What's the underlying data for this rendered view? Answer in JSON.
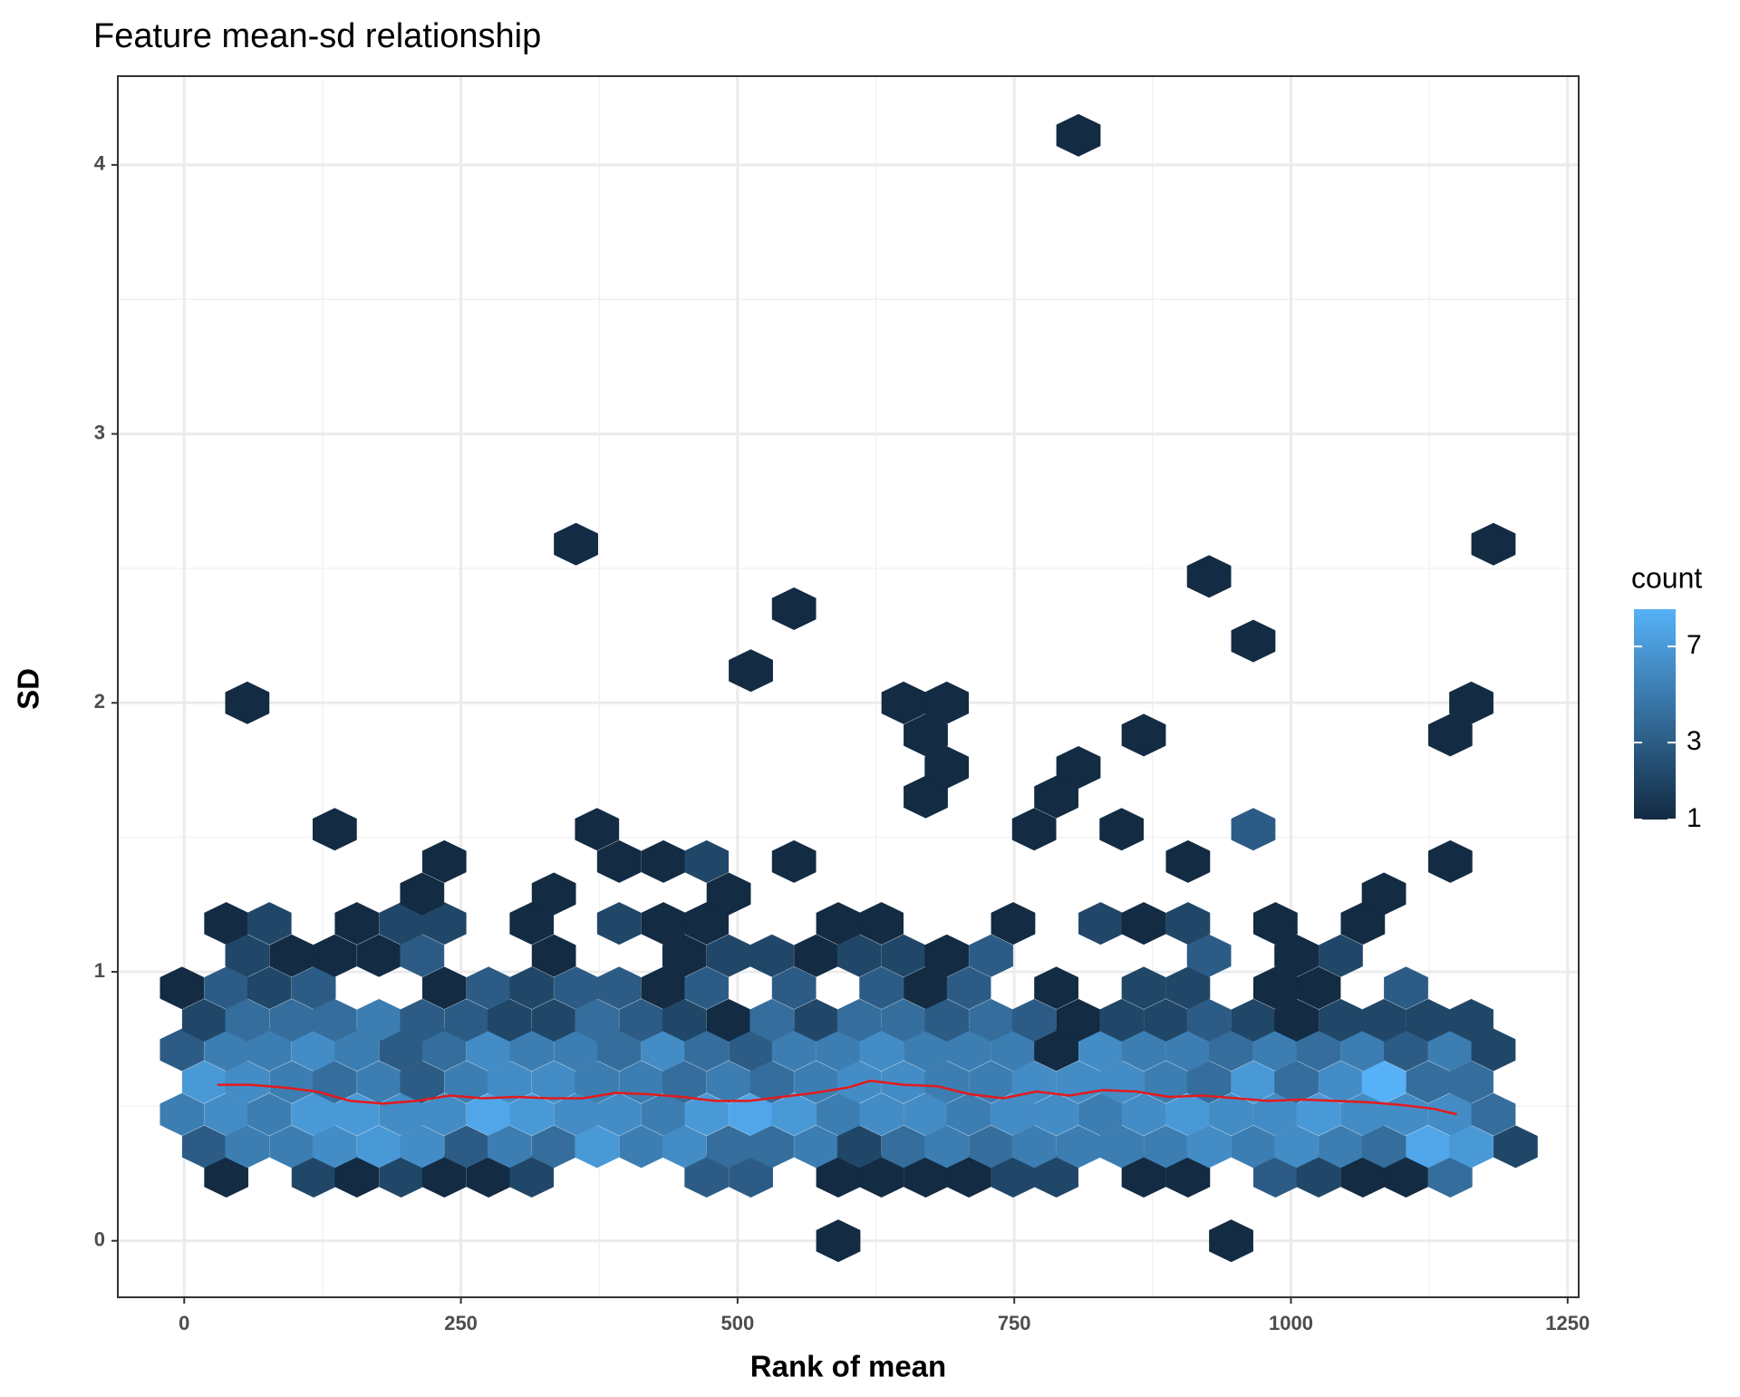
{
  "chart_data": {
    "type": "hexbin",
    "title": "Feature mean-sd relationship",
    "x_label": "Rank of mean",
    "y_label": "SD",
    "xlim": [
      -60,
      1260
    ],
    "ylim": [
      -0.21,
      4.33
    ],
    "xticks": [
      0,
      250,
      500,
      750,
      1000,
      1250
    ],
    "yticks": [
      0,
      1,
      2,
      3,
      4
    ],
    "grid": true,
    "fill": {
      "title": "count",
      "trans": "sqrt",
      "lim": [
        1,
        9
      ],
      "ticks": [
        1,
        3,
        7
      ],
      "low": "#132B43",
      "high": "#56B1F7"
    },
    "rows": [
      {
        "y": 0,
        "x": [
          591,
          946
        ],
        "count": [
          1,
          1
        ]
      },
      {
        "y": 0.24,
        "x": [
          38,
          117,
          156,
          196,
          235,
          275,
          314,
          472,
          512,
          591,
          630,
          670,
          709,
          749,
          788,
          867,
          907,
          986,
          1025,
          1065,
          1104,
          1144
        ],
        "count": [
          1,
          2,
          1,
          2,
          1,
          1,
          2,
          3,
          3,
          1,
          1,
          1,
          1,
          2,
          2,
          1,
          1,
          3,
          2,
          1,
          1,
          4
        ]
      },
      {
        "y": 0.35,
        "x": [
          18,
          57,
          97,
          136,
          176,
          215,
          255,
          294,
          334,
          373,
          413,
          452,
          492,
          531,
          571,
          610,
          650,
          689,
          729,
          768,
          808,
          847,
          887,
          926,
          966,
          1005,
          1045,
          1084,
          1124,
          1163,
          1203
        ],
        "count": [
          3,
          5,
          5,
          6,
          7,
          6,
          3,
          5,
          4,
          7,
          5,
          6,
          4,
          4,
          5,
          2,
          4,
          5,
          4,
          5,
          5,
          5,
          5,
          6,
          5,
          6,
          5,
          4,
          8,
          7,
          2
        ]
      },
      {
        "y": 0.47,
        "x": [
          -2,
          38,
          77,
          117,
          156,
          196,
          235,
          275,
          314,
          354,
          393,
          433,
          472,
          512,
          551,
          591,
          630,
          670,
          709,
          749,
          788,
          828,
          867,
          907,
          946,
          986,
          1025,
          1065,
          1104,
          1144,
          1183
        ],
        "count": [
          5,
          6,
          5,
          7,
          7,
          6,
          6,
          8,
          7,
          6,
          6,
          5,
          7,
          8,
          7,
          5,
          6,
          6,
          5,
          6,
          6,
          5,
          6,
          7,
          6,
          6,
          7,
          6,
          6,
          6,
          4
        ]
      },
      {
        "y": 0.59,
        "x": [
          18,
          57,
          97,
          136,
          176,
          215,
          255,
          294,
          334,
          373,
          413,
          452,
          492,
          531,
          571,
          610,
          650,
          689,
          729,
          768,
          808,
          847,
          887,
          926,
          966,
          1005,
          1045,
          1084,
          1124,
          1163
        ],
        "count": [
          7,
          6,
          5,
          4,
          5,
          3,
          5,
          6,
          6,
          5,
          5,
          4,
          5,
          4,
          5,
          6,
          6,
          5,
          5,
          6,
          6,
          6,
          5,
          4,
          7,
          4,
          6,
          9,
          4,
          4
        ]
      },
      {
        "y": 0.71,
        "x": [
          -2,
          38,
          77,
          117,
          156,
          196,
          235,
          275,
          314,
          354,
          393,
          433,
          472,
          512,
          551,
          591,
          630,
          670,
          709,
          749,
          788,
          828,
          867,
          907,
          946,
          986,
          1025,
          1065,
          1104,
          1144,
          1183
        ],
        "count": [
          3,
          5,
          5,
          6,
          5,
          3,
          4,
          6,
          5,
          5,
          4,
          6,
          4,
          3,
          5,
          5,
          6,
          5,
          5,
          5,
          1,
          6,
          5,
          5,
          4,
          5,
          4,
          5,
          3,
          5,
          2
        ]
      },
      {
        "y": 0.82,
        "x": [
          18,
          57,
          97,
          136,
          176,
          215,
          255,
          294,
          334,
          373,
          413,
          452,
          492,
          531,
          571,
          610,
          650,
          689,
          729,
          768,
          808,
          847,
          887,
          926,
          966,
          1005,
          1045,
          1084,
          1124,
          1163
        ],
        "count": [
          2,
          4,
          4,
          4,
          5,
          3,
          3,
          2,
          2,
          4,
          3,
          2,
          1,
          4,
          2,
          4,
          4,
          3,
          4,
          3,
          1,
          2,
          2,
          3,
          2,
          1,
          2,
          2,
          2,
          2
        ]
      },
      {
        "y": 0.94,
        "x": [
          -2,
          38,
          77,
          117,
          235,
          275,
          314,
          354,
          393,
          433,
          472,
          551,
          630,
          670,
          709,
          788,
          867,
          907,
          986,
          1025,
          1104
        ],
        "count": [
          1,
          3,
          2,
          3,
          1,
          3,
          2,
          3,
          3,
          1,
          3,
          3,
          3,
          1,
          3,
          1,
          2,
          2,
          1,
          1,
          3
        ]
      },
      {
        "y": 1.06,
        "x": [
          57,
          97,
          136,
          176,
          215,
          334,
          452,
          492,
          531,
          571,
          610,
          650,
          689,
          729,
          926,
          1005,
          1045
        ],
        "count": [
          2,
          1,
          1,
          1,
          3,
          1,
          1,
          2,
          2,
          1,
          2,
          2,
          1,
          3,
          3,
          1,
          2
        ]
      },
      {
        "y": 1.18,
        "x": [
          38,
          77,
          156,
          196,
          235,
          314,
          393,
          433,
          472,
          591,
          630,
          749,
          828,
          867,
          907,
          986,
          1065
        ],
        "count": [
          1,
          2,
          1,
          2,
          2,
          1,
          2,
          1,
          1,
          1,
          1,
          1,
          2,
          1,
          2,
          1,
          1
        ]
      },
      {
        "y": 1.29,
        "x": [
          215,
          334,
          492,
          1084
        ],
        "count": [
          1,
          1,
          1,
          1
        ]
      },
      {
        "y": 1.41,
        "x": [
          235,
          393,
          433,
          472,
          551,
          907,
          1144
        ],
        "count": [
          1,
          1,
          1,
          2,
          1,
          1,
          1
        ]
      },
      {
        "y": 1.53,
        "x": [
          136,
          373,
          768,
          847,
          966
        ],
        "count": [
          1,
          1,
          1,
          1,
          3
        ]
      },
      {
        "y": 1.65,
        "x": [
          670,
          788
        ],
        "count": [
          1,
          1
        ]
      },
      {
        "y": 1.76,
        "x": [
          689,
          808
        ],
        "count": [
          1,
          1
        ]
      },
      {
        "y": 1.88,
        "x": [
          670,
          867,
          1144
        ],
        "count": [
          1,
          1,
          1
        ]
      },
      {
        "y": 2.0,
        "x": [
          57,
          650,
          689,
          1163
        ],
        "count": [
          1,
          1,
          1,
          1
        ]
      },
      {
        "y": 2.12,
        "x": [
          512
        ],
        "count": [
          1
        ]
      },
      {
        "y": 2.23,
        "x": [
          966
        ],
        "count": [
          1
        ]
      },
      {
        "y": 2.35,
        "x": [
          551
        ],
        "count": [
          1
        ]
      },
      {
        "y": 2.47,
        "x": [
          926
        ],
        "count": [
          1
        ]
      },
      {
        "y": 2.59,
        "x": [
          354,
          1183
        ],
        "count": [
          1,
          1
        ]
      },
      {
        "y": 4.11,
        "x": [
          808
        ],
        "count": [
          1
        ]
      }
    ],
    "trend": {
      "color": "#e41a1c",
      "x": [
        30,
        60,
        90,
        120,
        150,
        180,
        210,
        240,
        270,
        300,
        330,
        360,
        390,
        420,
        450,
        480,
        510,
        540,
        570,
        600,
        620,
        650,
        680,
        710,
        740,
        770,
        800,
        830,
        860,
        890,
        920,
        950,
        980,
        1010,
        1040,
        1070,
        1100,
        1130,
        1150
      ],
      "y": [
        0.58,
        0.58,
        0.57,
        0.555,
        0.52,
        0.51,
        0.52,
        0.54,
        0.53,
        0.535,
        0.53,
        0.53,
        0.55,
        0.545,
        0.535,
        0.52,
        0.52,
        0.535,
        0.55,
        0.57,
        0.595,
        0.58,
        0.575,
        0.545,
        0.53,
        0.555,
        0.54,
        0.56,
        0.555,
        0.535,
        0.54,
        0.53,
        0.52,
        0.525,
        0.52,
        0.515,
        0.505,
        0.49,
        0.47
      ]
    }
  }
}
